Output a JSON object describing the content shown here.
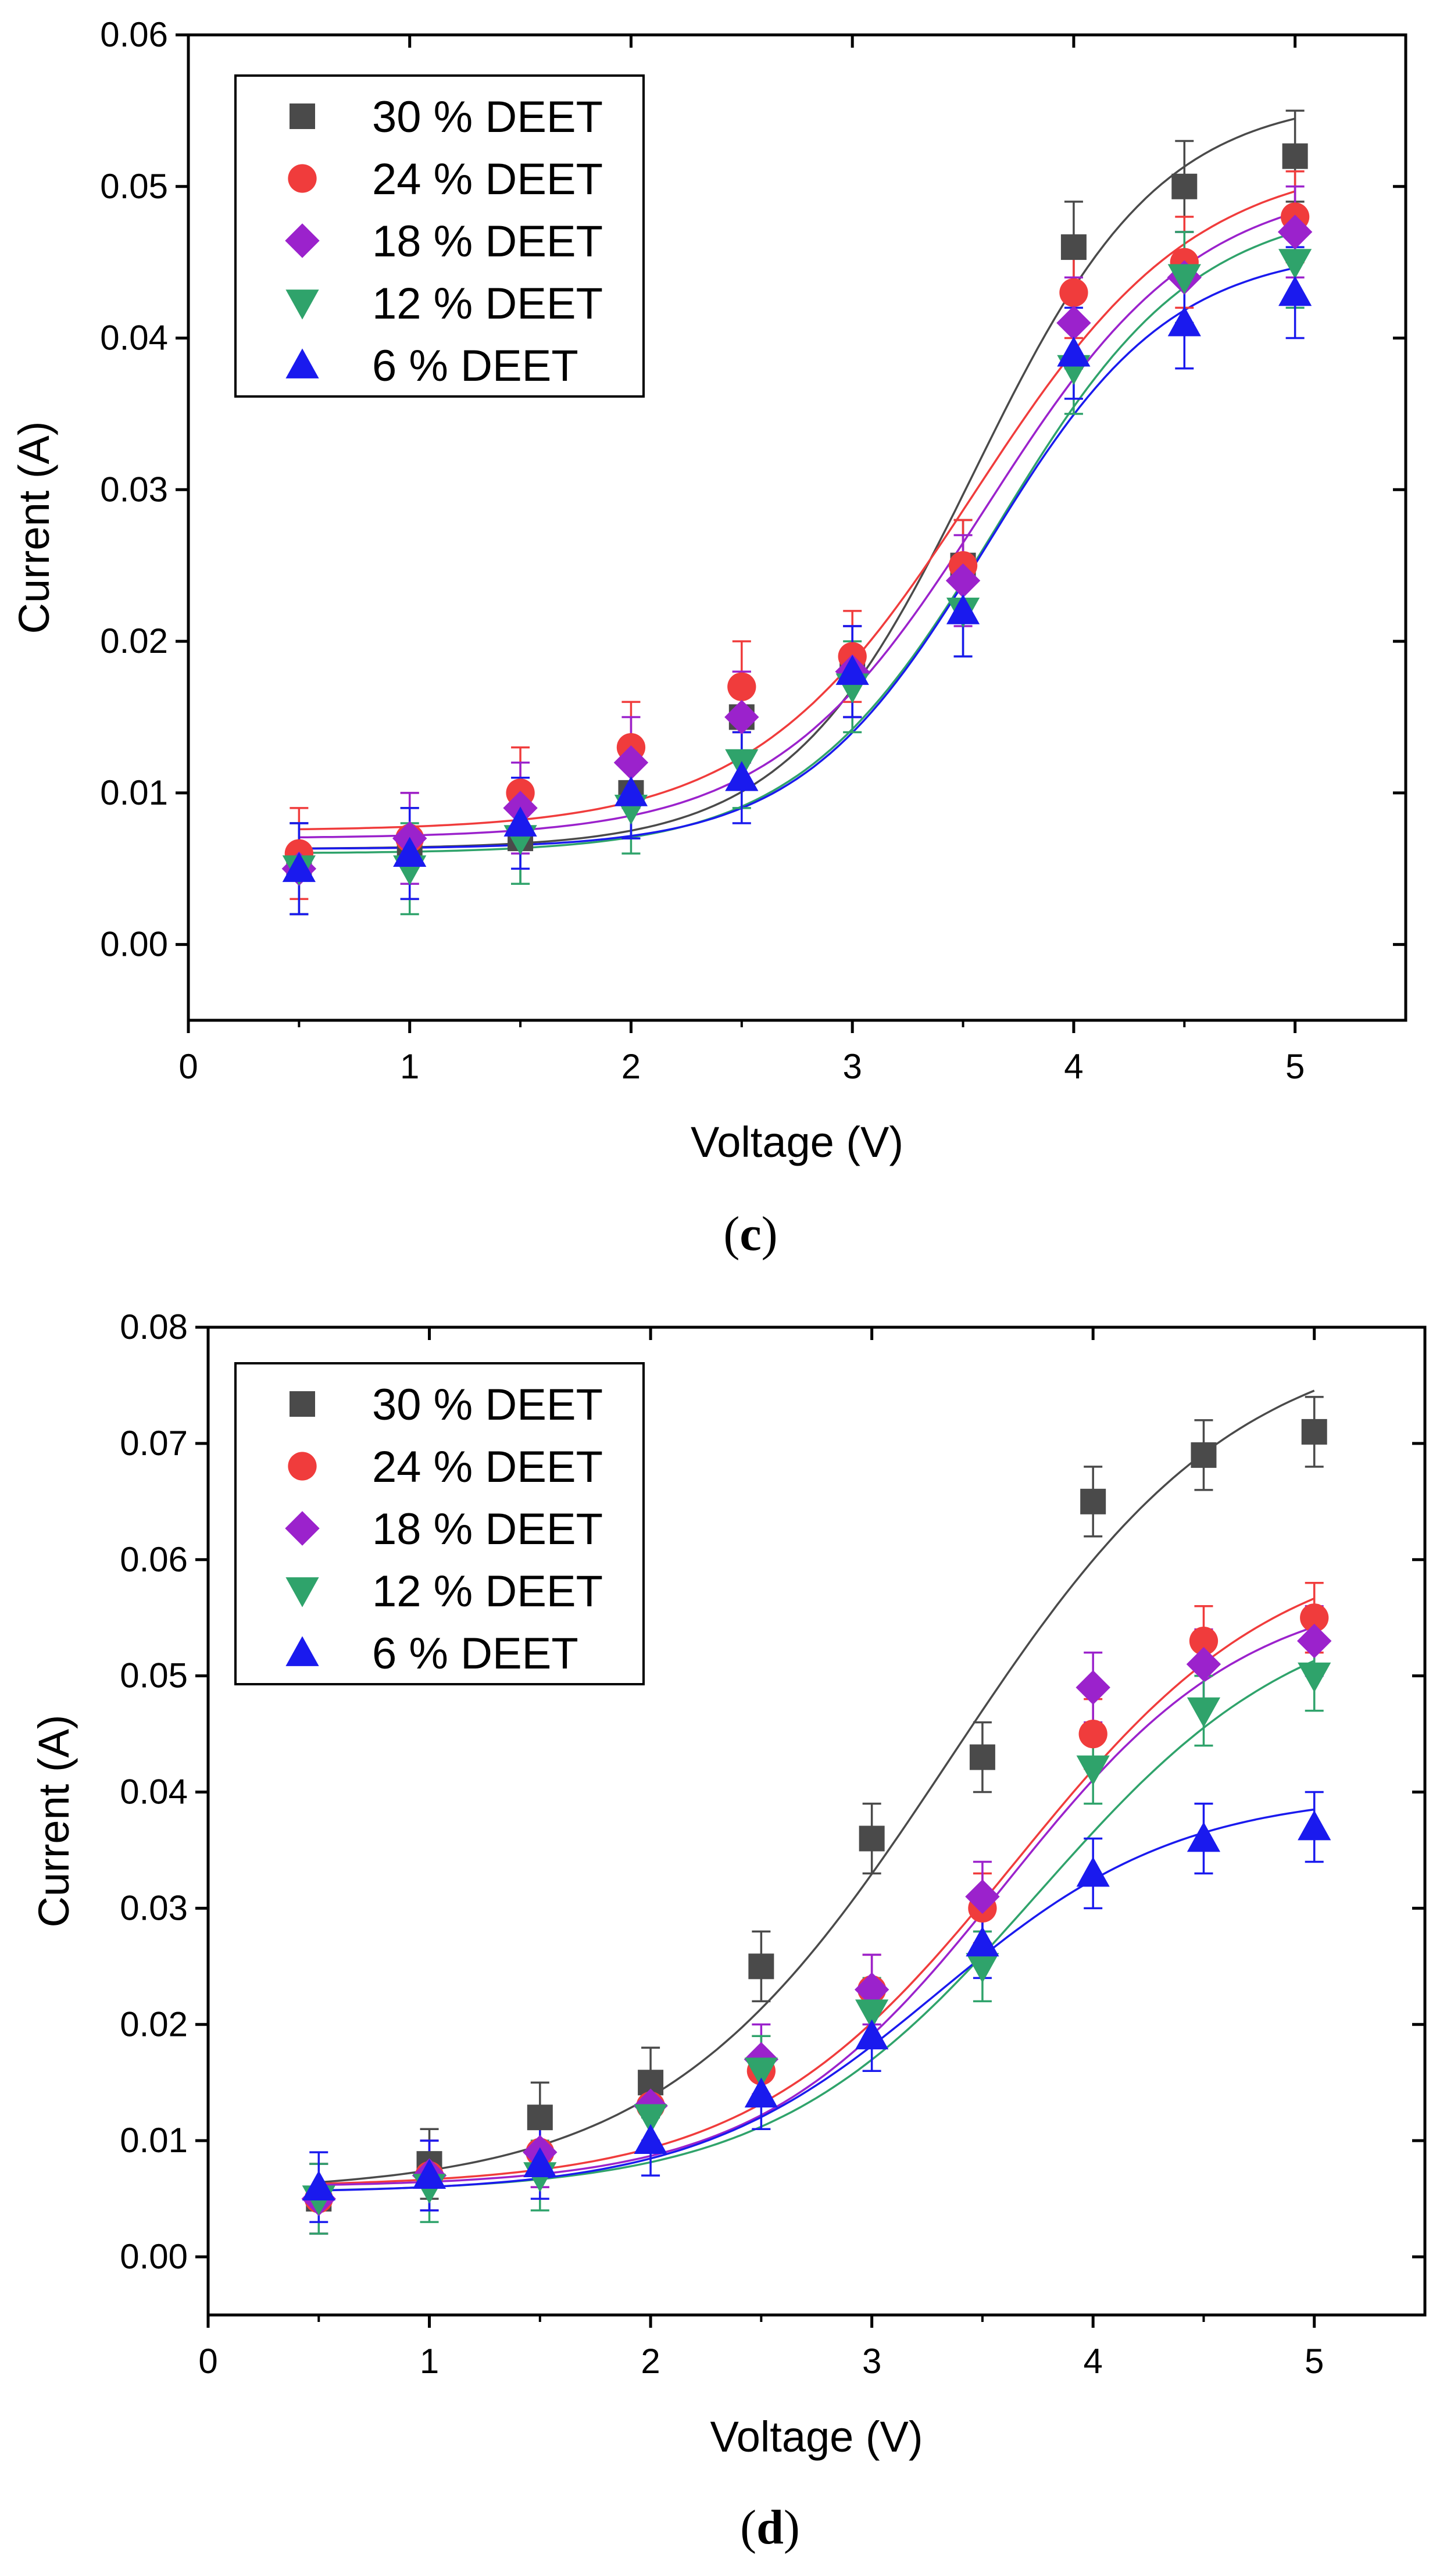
{
  "chart_data": [
    {
      "type": "scatter",
      "panel_label": "(c)",
      "panel_letter": "c",
      "xlabel": "Voltage (V)",
      "ylabel": "Current (A)",
      "xlim": [
        0,
        5.5
      ],
      "ylim": [
        -0.005,
        0.06
      ],
      "xticks": [
        0,
        1,
        2,
        3,
        4,
        5
      ],
      "yticks": [
        0.0,
        0.01,
        0.02,
        0.03,
        0.04,
        0.05,
        0.06
      ],
      "ytick_labels": [
        "0.00",
        "0.01",
        "0.02",
        "0.03",
        "0.04",
        "0.05",
        "0.06"
      ],
      "legend_position": "top-left",
      "grid": false,
      "x": [
        0.5,
        1.0,
        1.5,
        2.0,
        2.5,
        3.0,
        3.5,
        4.0,
        4.5,
        5.0
      ],
      "series": [
        {
          "name": "30 % DEET",
          "marker": "square",
          "color": "#4a4a4a",
          "values": [
            0.005,
            0.006,
            0.007,
            0.01,
            0.015,
            0.018,
            0.025,
            0.046,
            0.05,
            0.052
          ],
          "errors": [
            0.003,
            0.003,
            0.003,
            0.003,
            0.003,
            0.003,
            0.003,
            0.003,
            0.003,
            0.003
          ],
          "fit": {
            "min": 0.0063,
            "max": 0.056,
            "x0": 3.55,
            "dx": 0.42
          }
        },
        {
          "name": "24 % DEET",
          "marker": "circle",
          "color": "#f03c3c",
          "values": [
            0.006,
            0.007,
            0.01,
            0.013,
            0.017,
            0.019,
            0.025,
            0.043,
            0.045,
            0.048
          ],
          "errors": [
            0.003,
            0.003,
            0.003,
            0.003,
            0.003,
            0.003,
            0.003,
            0.003,
            0.003,
            0.003
          ],
          "fit": {
            "min": 0.0075,
            "max": 0.052,
            "x0": 3.55,
            "dx": 0.5
          }
        },
        {
          "name": "18 % DEET",
          "marker": "diamond",
          "color": "#9b22cc",
          "values": [
            0.005,
            0.007,
            0.009,
            0.012,
            0.015,
            0.018,
            0.024,
            0.041,
            0.044,
            0.047
          ],
          "errors": [
            0.003,
            0.003,
            0.003,
            0.003,
            0.003,
            0.003,
            0.003,
            0.003,
            0.003,
            0.003
          ],
          "fit": {
            "min": 0.007,
            "max": 0.0505,
            "x0": 3.6,
            "dx": 0.48
          }
        },
        {
          "name": "12 % DEET",
          "marker": "triangle-down",
          "color": "#2fa36b",
          "values": [
            0.005,
            0.005,
            0.007,
            0.009,
            0.012,
            0.017,
            0.022,
            0.038,
            0.044,
            0.045
          ],
          "errors": [
            0.003,
            0.003,
            0.003,
            0.003,
            0.003,
            0.003,
            0.003,
            0.003,
            0.003,
            0.003
          ],
          "fit": {
            "min": 0.006,
            "max": 0.049,
            "x0": 3.65,
            "dx": 0.45
          }
        },
        {
          "name": "6 % DEET",
          "marker": "triangle-up",
          "color": "#1a1aee",
          "values": [
            0.005,
            0.006,
            0.008,
            0.01,
            0.011,
            0.018,
            0.022,
            0.039,
            0.041,
            0.043
          ],
          "errors": [
            0.003,
            0.003,
            0.003,
            0.003,
            0.003,
            0.003,
            0.003,
            0.003,
            0.003,
            0.003
          ],
          "fit": {
            "min": 0.0063,
            "max": 0.046,
            "x0": 3.6,
            "dx": 0.42
          }
        }
      ]
    },
    {
      "type": "scatter",
      "panel_label": "(d)",
      "panel_letter": "d",
      "xlabel": "Voltage (V)",
      "ylabel": "Current (A)",
      "xlim": [
        0,
        5.5
      ],
      "ylim": [
        -0.005,
        0.08
      ],
      "xticks": [
        0,
        1,
        2,
        3,
        4,
        5
      ],
      "yticks": [
        0.0,
        0.01,
        0.02,
        0.03,
        0.04,
        0.05,
        0.06,
        0.07,
        0.08
      ],
      "ytick_labels": [
        "0.00",
        "0.01",
        "0.02",
        "0.03",
        "0.04",
        "0.05",
        "0.06",
        "0.07",
        "0.08"
      ],
      "legend_position": "top-left",
      "grid": false,
      "x": [
        0.5,
        1.0,
        1.5,
        2.0,
        2.5,
        3.0,
        3.5,
        4.0,
        4.5,
        5.0
      ],
      "series": [
        {
          "name": "30 % DEET",
          "marker": "square",
          "color": "#4a4a4a",
          "values": [
            0.005,
            0.008,
            0.012,
            0.015,
            0.025,
            0.036,
            0.043,
            0.065,
            0.069,
            0.071
          ],
          "errors": [
            0.003,
            0.003,
            0.003,
            0.003,
            0.003,
            0.003,
            0.003,
            0.003,
            0.003,
            0.003
          ],
          "fit": {
            "min": 0.0055,
            "max": 0.08,
            "x0": 3.35,
            "dx": 0.65
          }
        },
        {
          "name": "24 % DEET",
          "marker": "circle",
          "color": "#f03c3c",
          "values": [
            0.005,
            0.007,
            0.009,
            0.013,
            0.016,
            0.023,
            0.03,
            0.045,
            0.053,
            0.055
          ],
          "errors": [
            0.003,
            0.003,
            0.003,
            0.003,
            0.003,
            0.003,
            0.003,
            0.003,
            0.003,
            0.003
          ],
          "fit": {
            "min": 0.006,
            "max": 0.062,
            "x0": 3.65,
            "dx": 0.6
          }
        },
        {
          "name": "18 % DEET",
          "marker": "diamond",
          "color": "#9b22cc",
          "values": [
            0.005,
            0.007,
            0.009,
            0.013,
            0.017,
            0.023,
            0.031,
            0.049,
            0.051,
            0.053
          ],
          "errors": [
            0.003,
            0.003,
            0.003,
            0.003,
            0.003,
            0.003,
            0.003,
            0.003,
            0.003,
            0.003
          ],
          "fit": {
            "min": 0.006,
            "max": 0.058,
            "x0": 3.6,
            "dx": 0.55
          }
        },
        {
          "name": "12 % DEET",
          "marker": "triangle-down",
          "color": "#2fa36b",
          "values": [
            0.005,
            0.006,
            0.007,
            0.012,
            0.016,
            0.021,
            0.025,
            0.042,
            0.047,
            0.05
          ],
          "errors": [
            0.003,
            0.003,
            0.003,
            0.003,
            0.003,
            0.003,
            0.003,
            0.003,
            0.003,
            0.003
          ],
          "fit": {
            "min": 0.0055,
            "max": 0.057,
            "x0": 3.75,
            "dx": 0.6
          }
        },
        {
          "name": "6 % DEET",
          "marker": "triangle-up",
          "color": "#1a1aee",
          "values": [
            0.006,
            0.007,
            0.008,
            0.01,
            0.014,
            0.019,
            0.027,
            0.033,
            0.036,
            0.037
          ],
          "errors": [
            0.003,
            0.003,
            0.003,
            0.003,
            0.003,
            0.003,
            0.003,
            0.003,
            0.003,
            0.003
          ],
          "fit": {
            "min": 0.0055,
            "max": 0.04,
            "x0": 3.3,
            "dx": 0.55
          }
        }
      ]
    }
  ]
}
